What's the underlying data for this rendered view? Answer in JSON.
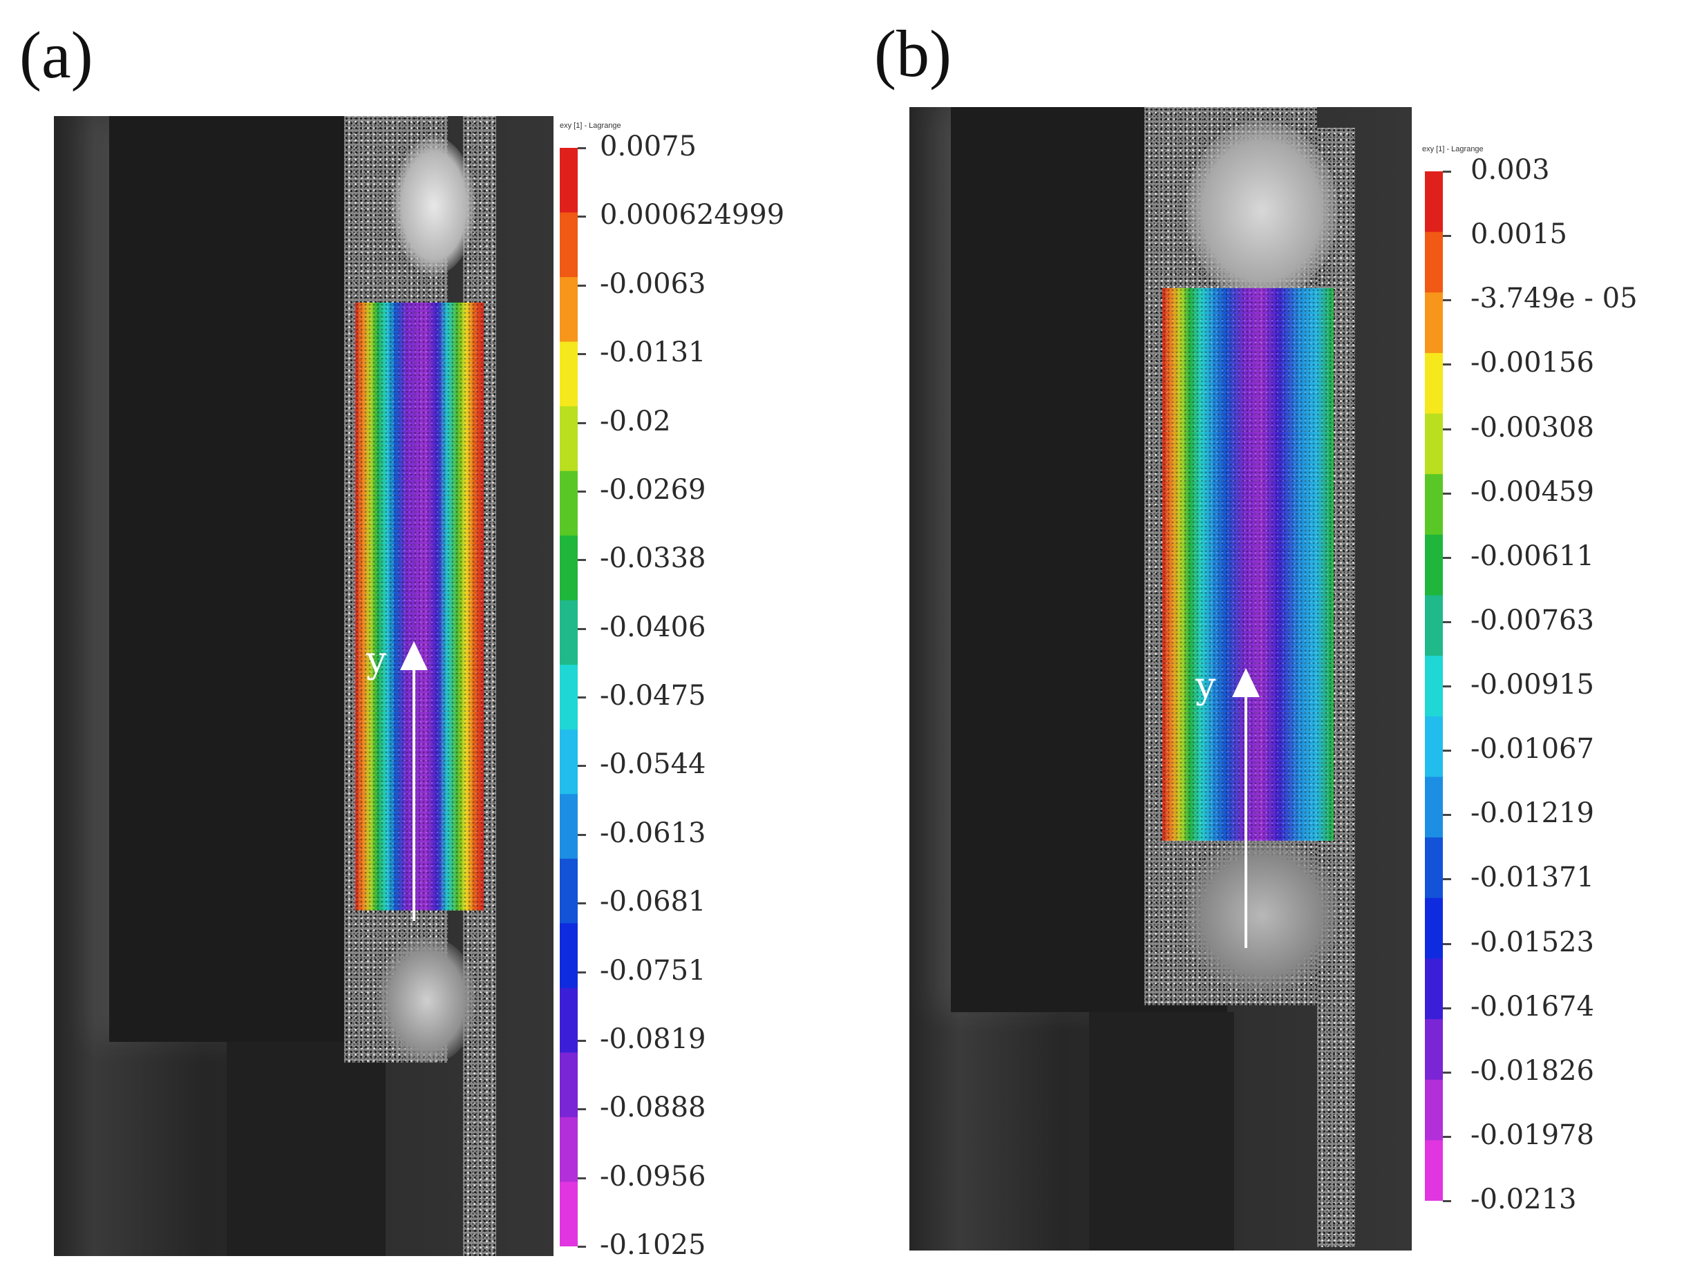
{
  "panels": [
    {
      "label": "(a)",
      "scale_title": "exy [1] - Lagrange",
      "axis_label": "y",
      "ticks": [
        "0.0075",
        "0.000624999",
        "-0.0063",
        "-0.0131",
        "-0.02",
        "-0.0269",
        "-0.0338",
        "-0.0406",
        "-0.0475",
        "-0.0544",
        "-0.0613",
        "-0.0681",
        "-0.0751",
        "-0.0819",
        "-0.0888",
        "-0.0956",
        "-0.1025"
      ]
    },
    {
      "label": "(b)",
      "scale_title": "exy [1] - Lagrange",
      "axis_label": "y",
      "ticks": [
        "0.003",
        "0.0015",
        "-3.749e - 05",
        "-0.00156",
        "-0.00308",
        "-0.00459",
        "-0.00611",
        "-0.00763",
        "-0.00915",
        "-0.01067",
        "-0.01219",
        "-0.01371",
        "-0.01523",
        "-0.01674",
        "-0.01826",
        "-0.01978",
        "-0.0213"
      ]
    }
  ],
  "colormap": [
    "#e0201b",
    "#f05a14",
    "#f7961a",
    "#f5e81c",
    "#b9df1f",
    "#59c826",
    "#1fb63b",
    "#20b98a",
    "#1fd7d4",
    "#22bdec",
    "#1c8fe4",
    "#1253d8",
    "#0f2be0",
    "#3b1fd8",
    "#7a25d6",
    "#b22fd9",
    "#e035e0"
  ]
}
